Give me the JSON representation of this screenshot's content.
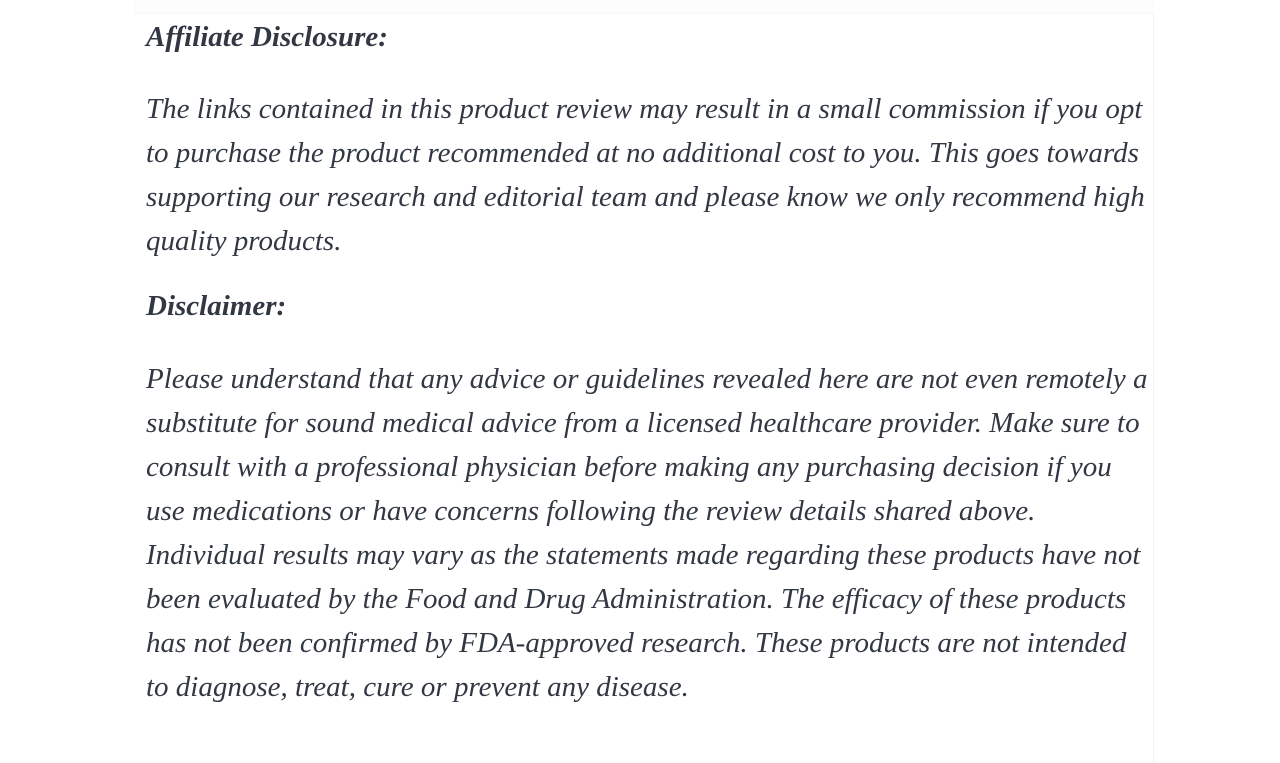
{
  "page": {
    "background": "#ffffff",
    "text_color": "#323843",
    "hairline_color": "#f4f4f4"
  },
  "content": {
    "affiliate": {
      "heading": "Affiliate Disclosure:",
      "body": "The links contained in this product review may result in a small commission if you opt to purchase the product recommended at no additional cost to you. This goes towards supporting our research and editorial team and please know we only recommend high quality products."
    },
    "disclaimer": {
      "heading": "Disclaimer:",
      "body": "Please understand that any advice or guidelines revealed here are not even remotely a substitute for sound medical advice from a licensed healthcare provider. Make sure to consult with a professional physician before making any purchasing decision if you use medications or have concerns following the review details shared above. Individual results may vary as the statements made regarding these products have not been evaluated by the Food and Drug Administration. The efficacy of these products has not been confirmed by FDA-approved research. These products are not intended to diagnose, treat, cure or prevent any disease."
    }
  }
}
